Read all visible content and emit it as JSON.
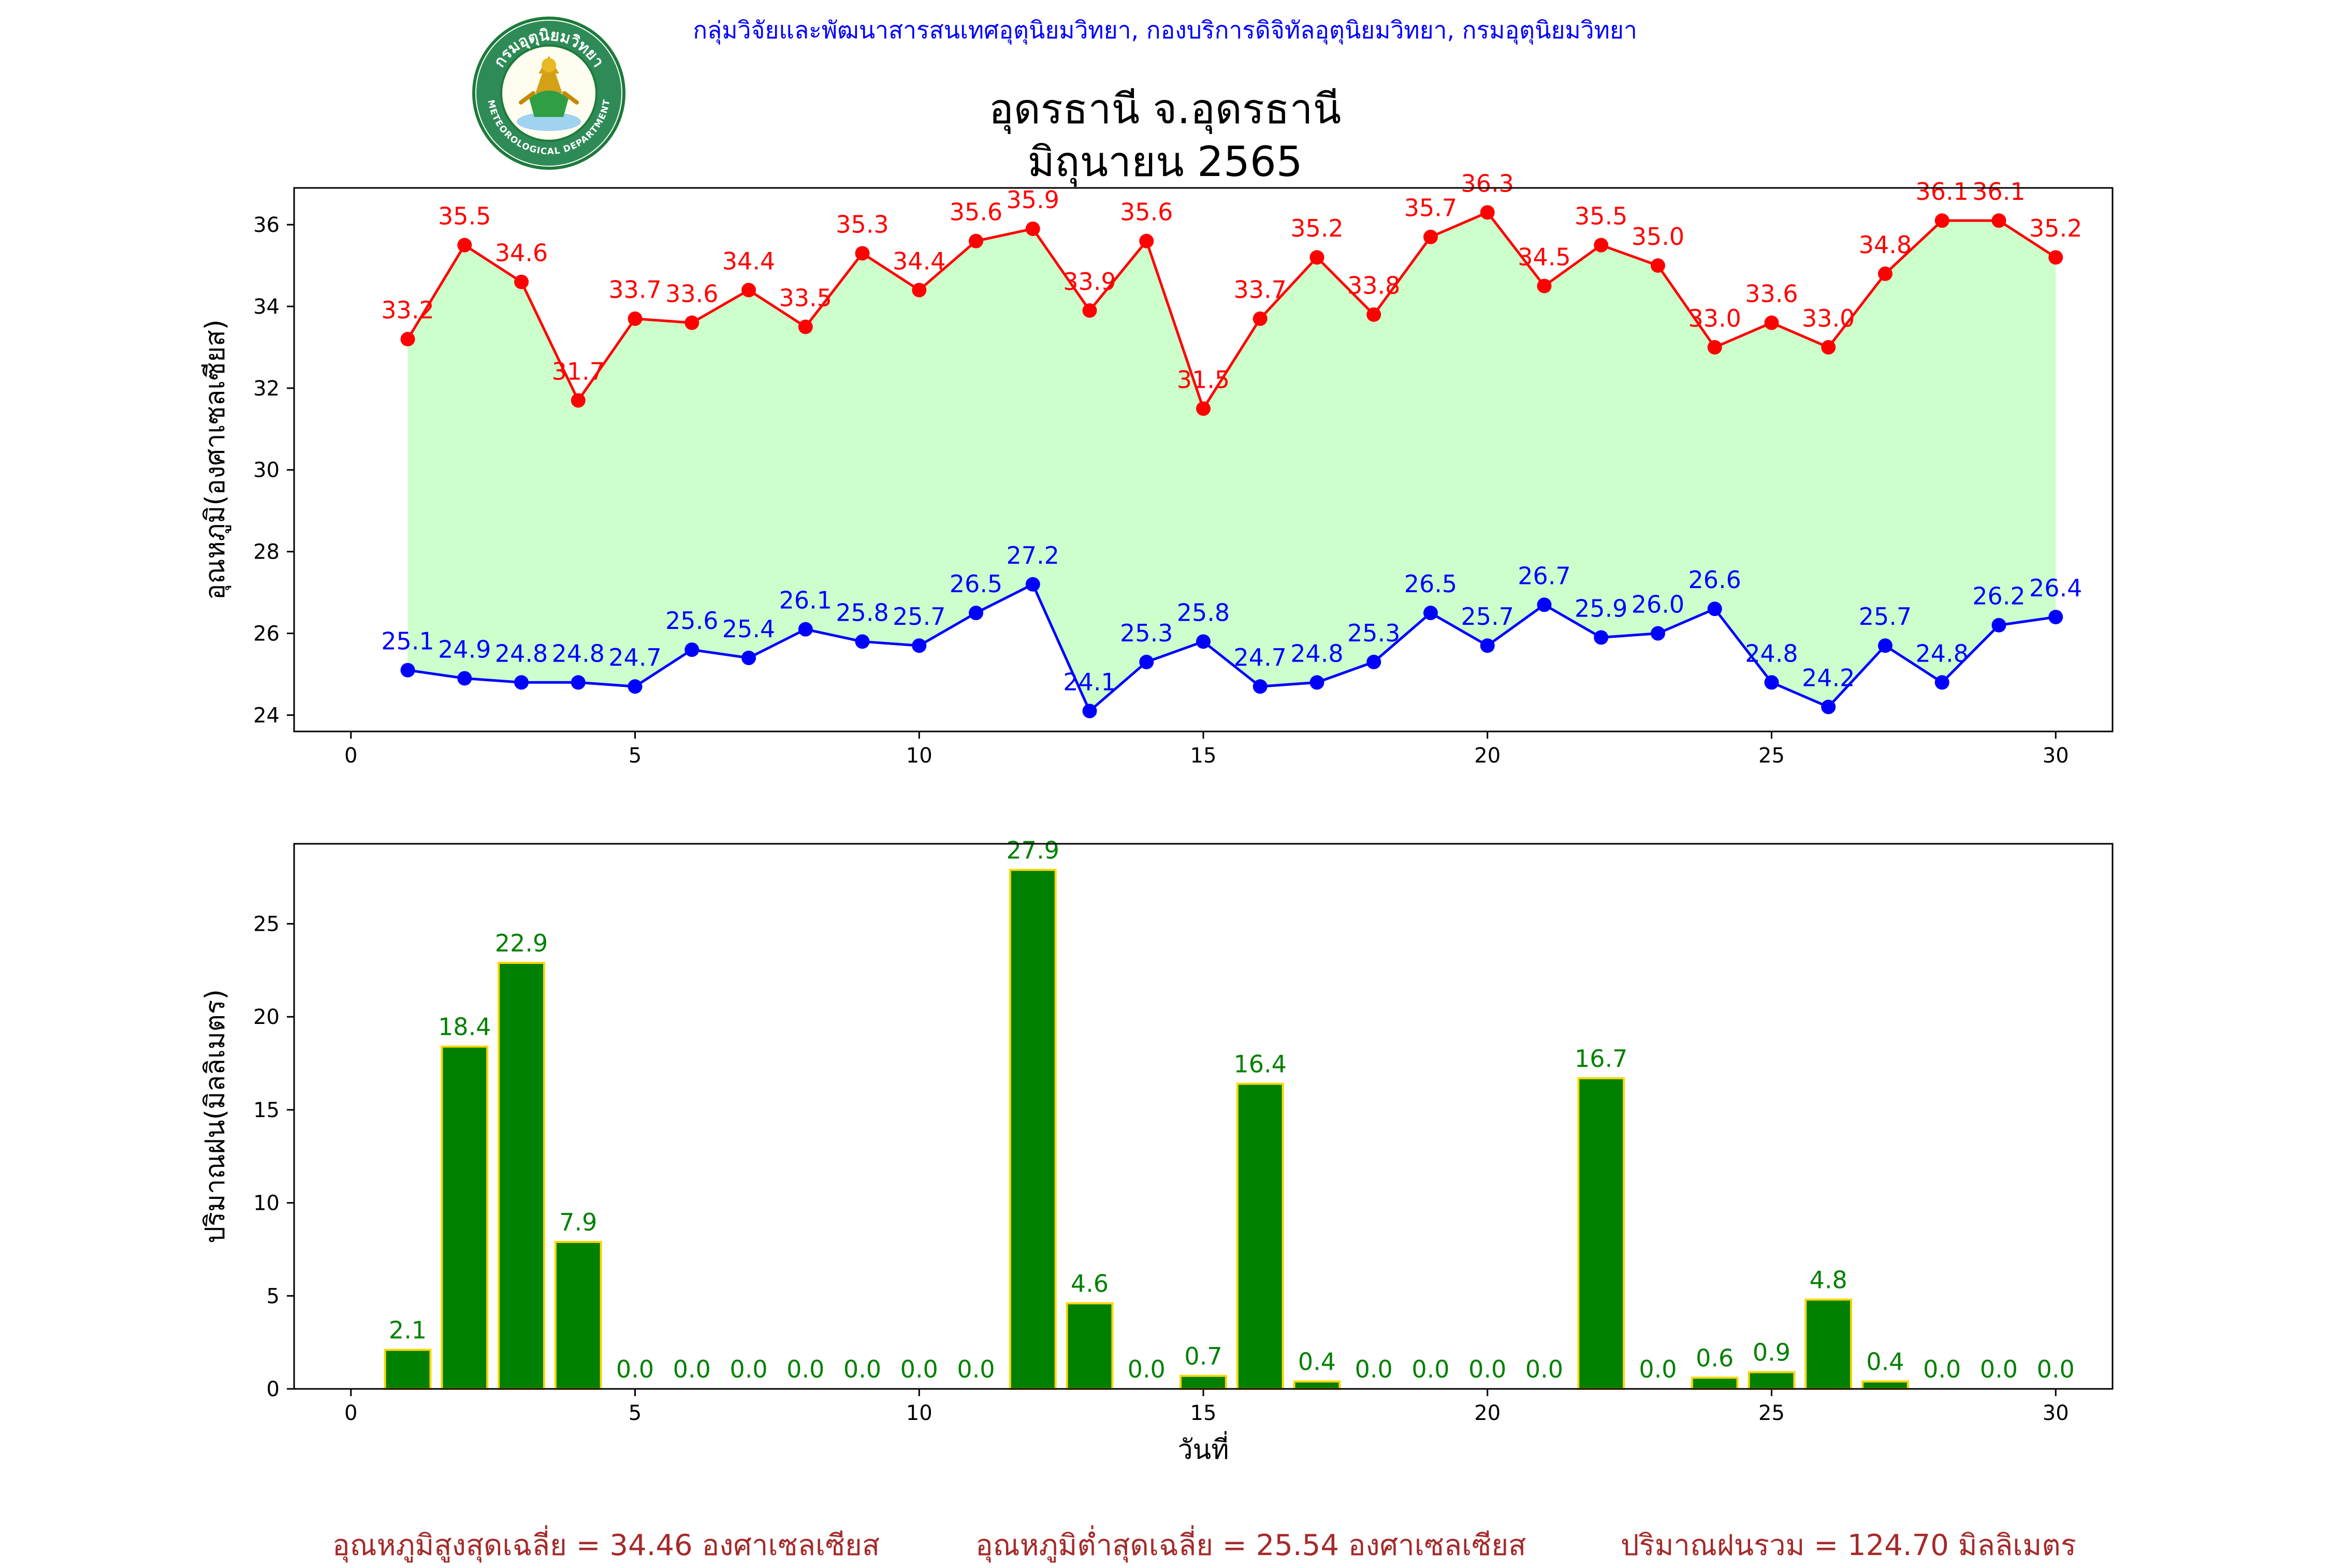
{
  "header": {
    "credit": "กลุ่มวิจัยและพัฒนาสารสนเทศอุตุนิยมวิทยา, กองบริการดิจิทัลอุตุนิยมวิทยา, กรมอุตุนิยมวิทยา",
    "title_line1": "อุดรธานี จ.อุดรธานี",
    "title_line2": "มิถุนายน 2565",
    "logo_text_top": "กรมอุตุนิยมวิทยา",
    "logo_text_bottom": "METEOROLOGICAL DEPARTMENT"
  },
  "summary": {
    "avg_max": "อุณหภูมิสูงสุดเฉลี่ย = 34.46 องศาเซลเซียส",
    "avg_min": "อุณหภูมิต่ำสุดเฉลี่ย = 25.54 องศาเซลเซียส",
    "total_rain": "ปริมาณฝนรวม = 124.70 มิลลิเมตร"
  },
  "colors": {
    "max": "#ff0000",
    "min": "#0000ff",
    "fill": "#ccffcc",
    "rain": "#008000",
    "rain_edge": "#ffd700",
    "summary": "#a52a2a",
    "credit": "#0000ff"
  },
  "chart_data": [
    {
      "type": "line",
      "ylabel": "อุณหภูมิ(องศาเซลเซียส)",
      "xlabel": "",
      "xlim": [
        -1,
        31
      ],
      "ylim": [
        23.6,
        36.9
      ],
      "xticks": [
        0,
        5,
        10,
        15,
        20,
        25,
        30
      ],
      "yticks": [
        24,
        26,
        28,
        30,
        32,
        34,
        36
      ],
      "grid": false,
      "x": [
        1,
        2,
        3,
        4,
        5,
        6,
        7,
        8,
        9,
        10,
        11,
        12,
        13,
        14,
        15,
        16,
        17,
        18,
        19,
        20,
        21,
        22,
        23,
        24,
        25,
        26,
        27,
        28,
        29,
        30
      ],
      "series": [
        {
          "key": "max",
          "values": [
            33.2,
            35.5,
            34.6,
            31.7,
            33.7,
            33.6,
            34.4,
            33.5,
            35.3,
            34.4,
            35.6,
            35.9,
            33.9,
            35.6,
            31.5,
            33.7,
            35.2,
            33.8,
            35.7,
            36.3,
            34.5,
            35.5,
            35.0,
            33.0,
            33.6,
            33.0,
            34.8,
            36.1,
            36.1,
            35.2
          ]
        },
        {
          "key": "min",
          "values": [
            25.1,
            24.9,
            24.8,
            24.8,
            24.7,
            25.6,
            25.4,
            26.1,
            25.8,
            25.7,
            26.5,
            27.2,
            24.1,
            25.3,
            25.8,
            24.7,
            24.8,
            25.3,
            26.5,
            25.7,
            26.7,
            25.9,
            26.0,
            26.6,
            24.8,
            24.2,
            25.7,
            24.8,
            26.2,
            26.4
          ]
        }
      ]
    },
    {
      "type": "bar",
      "ylabel": "ปริมาณฝน(มิลลิเมตร)",
      "xlabel": "วันที่",
      "xlim": [
        -1,
        31
      ],
      "ylim": [
        0,
        29.3
      ],
      "xticks": [
        0,
        5,
        10,
        15,
        20,
        25,
        30
      ],
      "yticks": [
        0,
        5,
        10,
        15,
        20,
        25
      ],
      "grid": false,
      "x": [
        1,
        2,
        3,
        4,
        5,
        6,
        7,
        8,
        9,
        10,
        11,
        12,
        13,
        14,
        15,
        16,
        17,
        18,
        19,
        20,
        21,
        22,
        23,
        24,
        25,
        26,
        27,
        28,
        29,
        30
      ],
      "values": [
        2.1,
        18.4,
        22.9,
        7.9,
        0.0,
        0.0,
        0.0,
        0.0,
        0.0,
        0.0,
        0.0,
        27.9,
        4.6,
        0.0,
        0.7,
        16.4,
        0.4,
        0.0,
        0.0,
        0.0,
        0.0,
        16.7,
        0.0,
        0.6,
        0.9,
        4.8,
        0.4,
        0.0,
        0.0,
        0.0
      ]
    }
  ]
}
